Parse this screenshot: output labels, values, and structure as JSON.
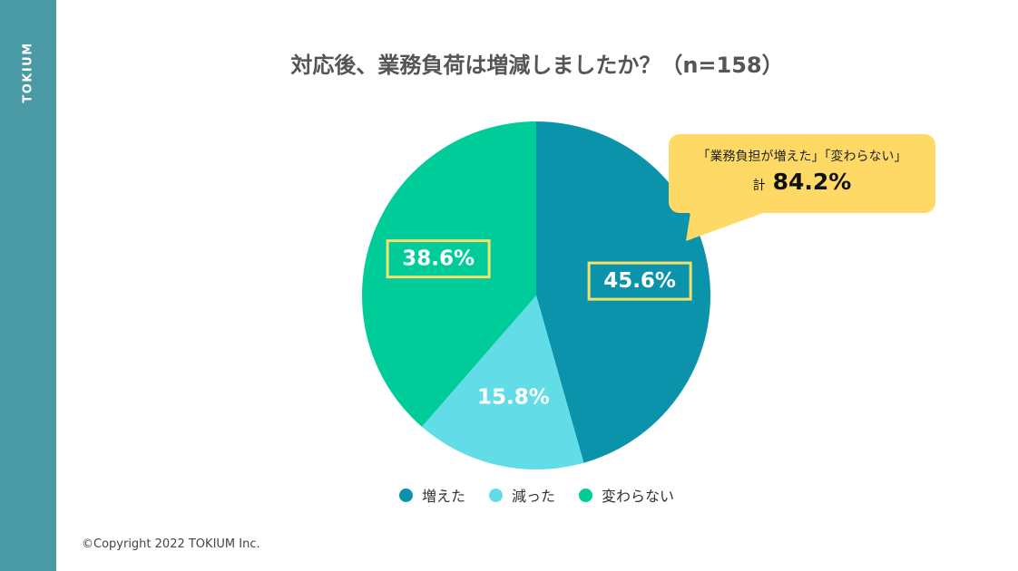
{
  "brand": "TOKIUM",
  "copyright": "©Copyright 2022 TOKIUM Inc.",
  "colors": {
    "sidebar": "#4a9aa6",
    "label_box": "#f6e06a",
    "callout": "#fed966"
  },
  "chart_data": {
    "type": "pie",
    "title": "対応後、業務負荷は増減しましたか？（n=158）",
    "unit": "%",
    "slices": [
      {
        "name": "増えた",
        "value": 45.6,
        "label": "45.6%",
        "color": "#0b93ab",
        "boxed": true
      },
      {
        "name": "減った",
        "value": 15.8,
        "label": "15.8%",
        "color": "#62dde8",
        "boxed": false
      },
      {
        "name": "変わらない",
        "value": 38.6,
        "label": "38.6%",
        "color": "#00cc99",
        "boxed": true
      }
    ],
    "legend_position": "bottom",
    "annotation": {
      "line1": "「業務負担が増えた」「変わらない」",
      "prefix": "計",
      "total": "84.2%"
    }
  }
}
